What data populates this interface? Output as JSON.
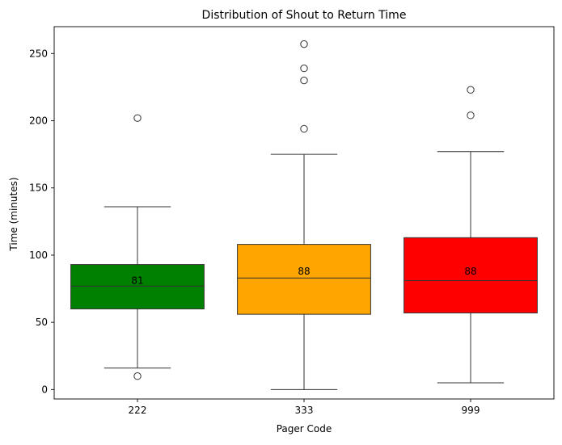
{
  "chart_data": {
    "type": "boxplot",
    "title": "Distribution of Shout to Return Time",
    "xlabel": "Pager Code",
    "ylabel": "Time (minutes)",
    "ylim": [
      -7,
      270
    ],
    "yticks": [
      0,
      50,
      100,
      150,
      200,
      250
    ],
    "grid": false,
    "legend": "none",
    "categories": [
      "222",
      "333",
      "999"
    ],
    "boxes": [
      {
        "category": "222",
        "color": "#008000",
        "whisker_low": 16,
        "q1": 60,
        "median": 77,
        "q3": 93,
        "whisker_high": 136,
        "outliers": [
          10,
          202
        ],
        "label": "81",
        "label_value": 81
      },
      {
        "category": "333",
        "color": "#ffa500",
        "whisker_low": 0,
        "q1": 56,
        "median": 83,
        "q3": 108,
        "whisker_high": 175,
        "outliers": [
          194,
          230,
          239,
          257
        ],
        "label": "88",
        "label_value": 88
      },
      {
        "category": "999",
        "color": "#ff0000",
        "whisker_low": 5,
        "q1": 57,
        "median": 81,
        "q3": 113,
        "whisker_high": 177,
        "outliers": [
          204,
          223
        ],
        "label": "88",
        "label_value": 88
      }
    ]
  }
}
